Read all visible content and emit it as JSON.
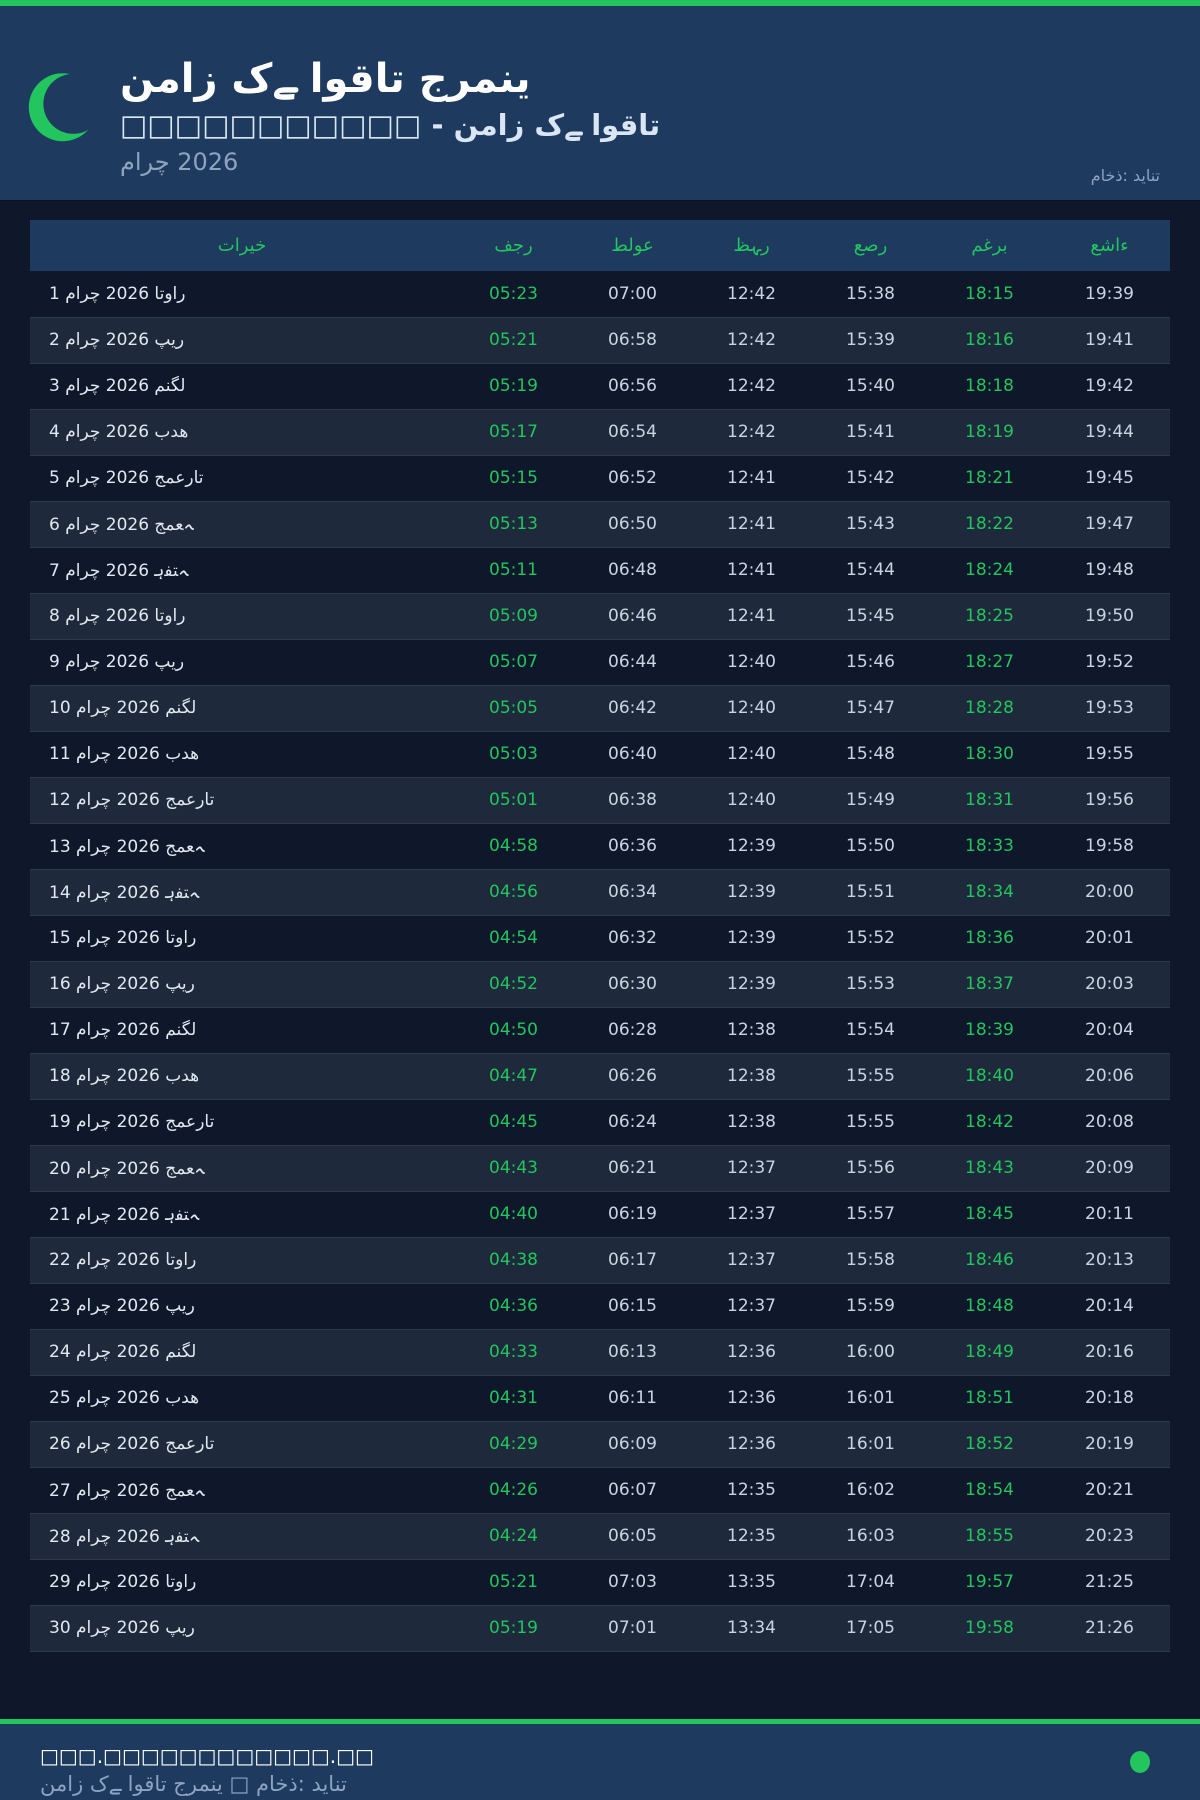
{
  "header": {
    "title": "نماز کے اوقات جرمنی",
    "subtitle": "□□□□□□□□□□□ - نماز کے اوقات",
    "month": "مارچ 2026",
    "source": "ماخذ: دیانت",
    "icon": "crescent-moon-icon",
    "accent": "#22c55e"
  },
  "table": {
    "columns": [
      "تاریخ",
      "فجر",
      "طلوع",
      "ظہر",
      "عصر",
      "مغرب",
      "عشاء"
    ],
    "rows": [
      [
        "1 مارچ 2026 اتوار",
        "05:23",
        "07:00",
        "12:42",
        "15:38",
        "18:15",
        "19:39"
      ],
      [
        "2 مارچ 2026 پیر",
        "05:21",
        "06:58",
        "12:42",
        "15:39",
        "18:16",
        "19:41"
      ],
      [
        "3 مارچ 2026 منگل",
        "05:19",
        "06:56",
        "12:42",
        "15:40",
        "18:18",
        "19:42"
      ],
      [
        "4 مارچ 2026 بدھ",
        "05:17",
        "06:54",
        "12:42",
        "15:41",
        "18:19",
        "19:44"
      ],
      [
        "5 مارچ 2026 جمعرات",
        "05:15",
        "06:52",
        "12:41",
        "15:42",
        "18:21",
        "19:45"
      ],
      [
        "6 مارچ 2026 جمعہ",
        "05:13",
        "06:50",
        "12:41",
        "15:43",
        "18:22",
        "19:47"
      ],
      [
        "7 مارچ 2026 ہفتہ",
        "05:11",
        "06:48",
        "12:41",
        "15:44",
        "18:24",
        "19:48"
      ],
      [
        "8 مارچ 2026 اتوار",
        "05:09",
        "06:46",
        "12:41",
        "15:45",
        "18:25",
        "19:50"
      ],
      [
        "9 مارچ 2026 پیر",
        "05:07",
        "06:44",
        "12:40",
        "15:46",
        "18:27",
        "19:52"
      ],
      [
        "10 مارچ 2026 منگل",
        "05:05",
        "06:42",
        "12:40",
        "15:47",
        "18:28",
        "19:53"
      ],
      [
        "11 مارچ 2026 بدھ",
        "05:03",
        "06:40",
        "12:40",
        "15:48",
        "18:30",
        "19:55"
      ],
      [
        "12 مارچ 2026 جمعرات",
        "05:01",
        "06:38",
        "12:40",
        "15:49",
        "18:31",
        "19:56"
      ],
      [
        "13 مارچ 2026 جمعہ",
        "04:58",
        "06:36",
        "12:39",
        "15:50",
        "18:33",
        "19:58"
      ],
      [
        "14 مارچ 2026 ہفتہ",
        "04:56",
        "06:34",
        "12:39",
        "15:51",
        "18:34",
        "20:00"
      ],
      [
        "15 مارچ 2026 اتوار",
        "04:54",
        "06:32",
        "12:39",
        "15:52",
        "18:36",
        "20:01"
      ],
      [
        "16 مارچ 2026 پیر",
        "04:52",
        "06:30",
        "12:39",
        "15:53",
        "18:37",
        "20:03"
      ],
      [
        "17 مارچ 2026 منگل",
        "04:50",
        "06:28",
        "12:38",
        "15:54",
        "18:39",
        "20:04"
      ],
      [
        "18 مارچ 2026 بدھ",
        "04:47",
        "06:26",
        "12:38",
        "15:55",
        "18:40",
        "20:06"
      ],
      [
        "19 مارچ 2026 جمعرات",
        "04:45",
        "06:24",
        "12:38",
        "15:55",
        "18:42",
        "20:08"
      ],
      [
        "20 مارچ 2026 جمعہ",
        "04:43",
        "06:21",
        "12:37",
        "15:56",
        "18:43",
        "20:09"
      ],
      [
        "21 مارچ 2026 ہفتہ",
        "04:40",
        "06:19",
        "12:37",
        "15:57",
        "18:45",
        "20:11"
      ],
      [
        "22 مارچ 2026 اتوار",
        "04:38",
        "06:17",
        "12:37",
        "15:58",
        "18:46",
        "20:13"
      ],
      [
        "23 مارچ 2026 پیر",
        "04:36",
        "06:15",
        "12:37",
        "15:59",
        "18:48",
        "20:14"
      ],
      [
        "24 مارچ 2026 منگل",
        "04:33",
        "06:13",
        "12:36",
        "16:00",
        "18:49",
        "20:16"
      ],
      [
        "25 مارچ 2026 بدھ",
        "04:31",
        "06:11",
        "12:36",
        "16:01",
        "18:51",
        "20:18"
      ],
      [
        "26 مارچ 2026 جمعرات",
        "04:29",
        "06:09",
        "12:36",
        "16:01",
        "18:52",
        "20:19"
      ],
      [
        "27 مارچ 2026 جمعہ",
        "04:26",
        "06:07",
        "12:35",
        "16:02",
        "18:54",
        "20:21"
      ],
      [
        "28 مارچ 2026 ہفتہ",
        "04:24",
        "06:05",
        "12:35",
        "16:03",
        "18:55",
        "20:23"
      ],
      [
        "29 مارچ 2026 اتوار",
        "05:21",
        "07:03",
        "13:35",
        "17:04",
        "19:57",
        "21:25"
      ],
      [
        "30 مارچ 2026 پیر",
        "05:19",
        "07:01",
        "13:34",
        "17:05",
        "19:58",
        "21:26"
      ]
    ]
  },
  "footer": {
    "url": "□□□.□□□□□□□□□□□□.□□",
    "note": "نماز کے اوقات جرمنی □ ماخذ: دیانت",
    "status_dot_color": "#22c55e"
  }
}
